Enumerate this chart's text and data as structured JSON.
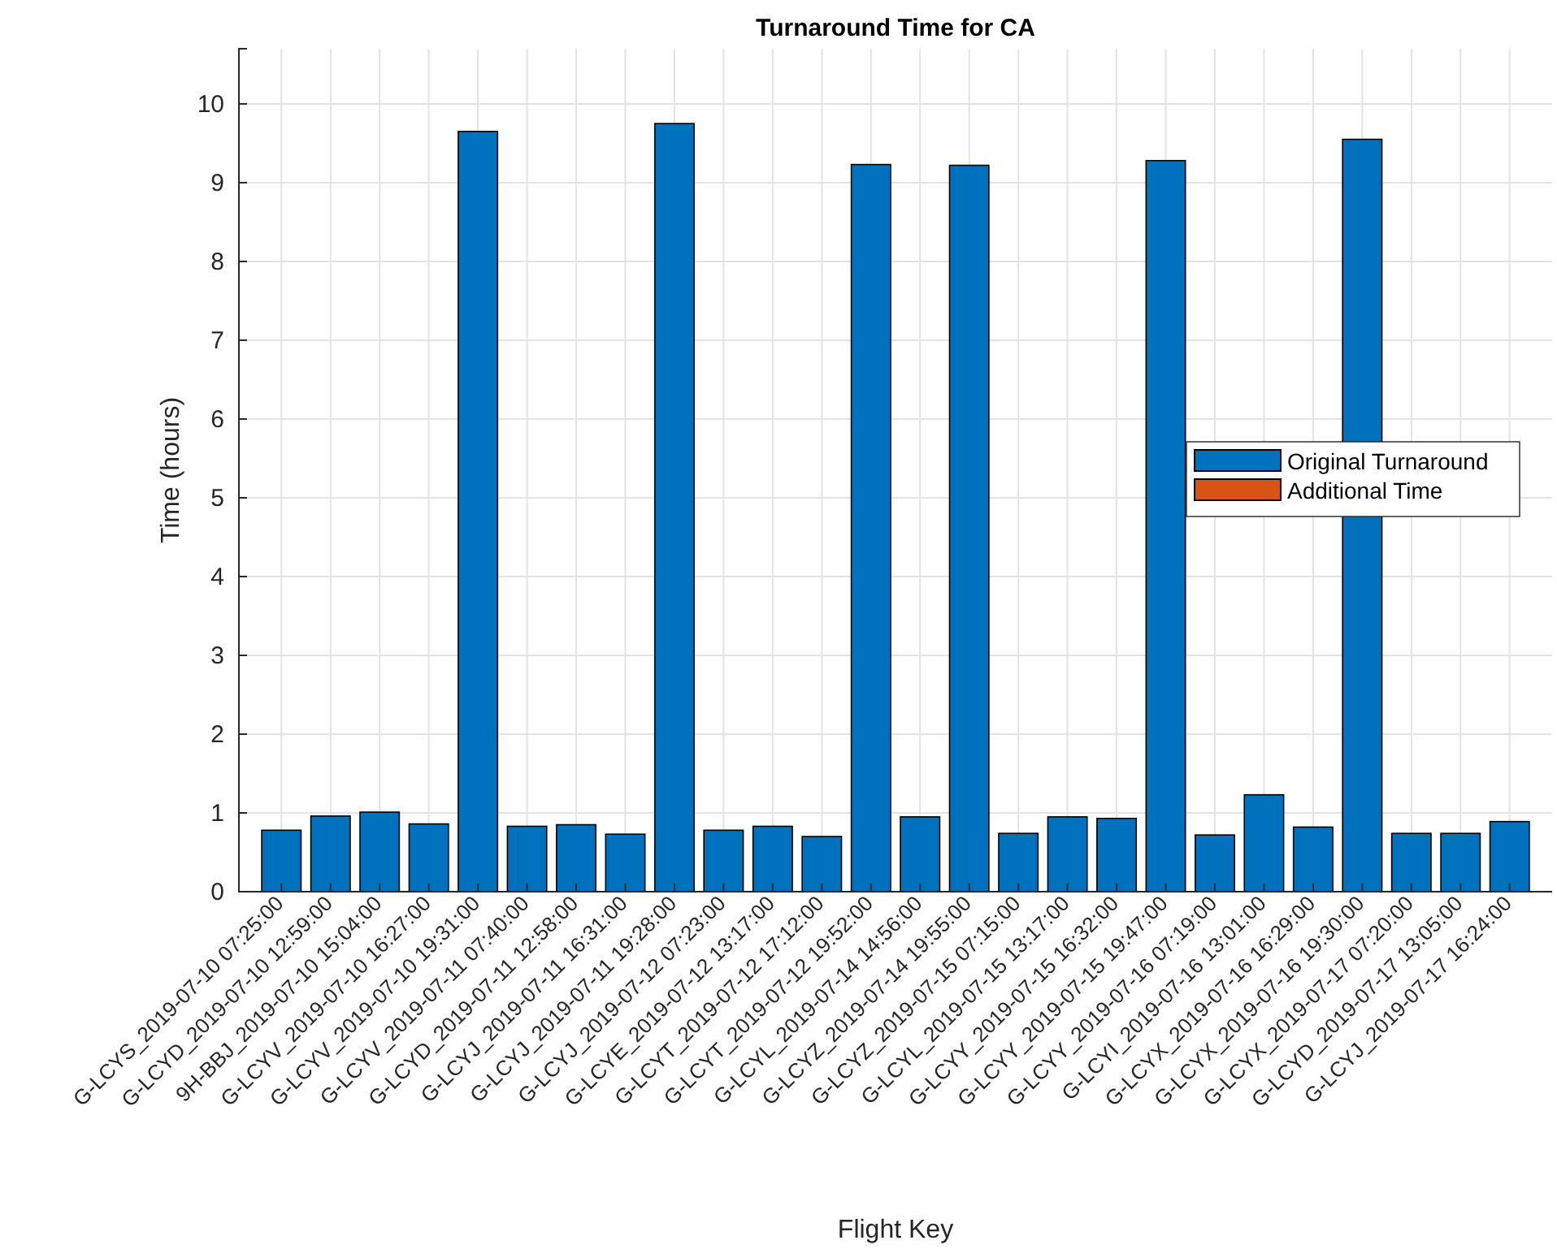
{
  "chart_data": {
    "type": "bar",
    "title": "Turnaround Time for CA",
    "xlabel": "Flight Key",
    "ylabel": "Time (hours)",
    "categories": [
      "G-LCYS_2019-07-10 07:25:00",
      "G-LCYD_2019-07-10 12:59:00",
      "9H-BBJ_2019-07-10 15:04:00",
      "G-LCYV_2019-07-10 16:27:00",
      "G-LCYV_2019-07-10 19:31:00",
      "G-LCYV_2019-07-11 07:40:00",
      "G-LCYD_2019-07-11 12:58:00",
      "G-LCYJ_2019-07-11 16:31:00",
      "G-LCYJ_2019-07-11 19:28:00",
      "G-LCYJ_2019-07-12 07:23:00",
      "G-LCYE_2019-07-12 13:17:00",
      "G-LCYT_2019-07-12 17:12:00",
      "G-LCYT_2019-07-12 19:52:00",
      "G-LCYL_2019-07-14 14:56:00",
      "G-LCYZ_2019-07-14 19:55:00",
      "G-LCYZ_2019-07-15 07:15:00",
      "G-LCYL_2019-07-15 13:17:00",
      "G-LCYY_2019-07-15 16:32:00",
      "G-LCYY_2019-07-15 19:47:00",
      "G-LCYY_2019-07-16 07:19:00",
      "G-LCYI_2019-07-16 13:01:00",
      "G-LCYX_2019-07-16 16:29:00",
      "G-LCYX_2019-07-16 19:30:00",
      "G-LCYX_2019-07-17 07:20:00",
      "G-LCYD_2019-07-17 13:05:00",
      "G-LCYJ_2019-07-17 16:24:00"
    ],
    "series": [
      {
        "name": "Original Turnaround",
        "color": "#0072bd",
        "values": [
          0.78,
          0.96,
          1.01,
          0.86,
          9.65,
          0.83,
          0.85,
          0.73,
          9.75,
          0.78,
          0.83,
          0.7,
          9.23,
          0.95,
          9.22,
          0.74,
          0.95,
          0.93,
          9.28,
          0.72,
          1.23,
          0.82,
          9.55,
          0.74,
          0.74,
          0.89
        ]
      },
      {
        "name": "Additional Time",
        "color": "#d95319",
        "values": [
          0,
          0,
          0,
          0,
          0,
          0,
          0,
          0,
          0,
          0,
          0,
          0,
          0,
          0,
          0,
          0,
          0,
          0,
          0,
          0,
          0,
          0,
          0,
          0,
          0,
          0
        ]
      }
    ],
    "stacked": true,
    "ylim": [
      0,
      10.7
    ],
    "yticks": [
      0,
      1,
      2,
      3,
      4,
      5,
      6,
      7,
      8,
      9,
      10
    ],
    "grid": true,
    "legend": "right"
  }
}
